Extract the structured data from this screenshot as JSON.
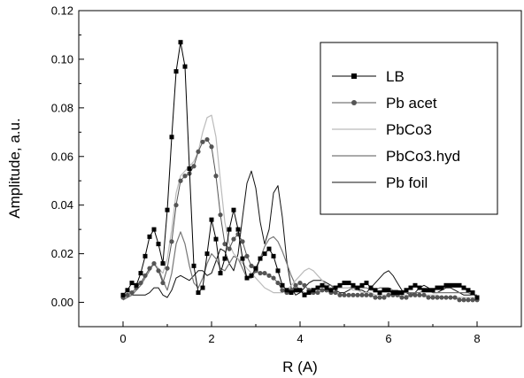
{
  "chart_data": {
    "type": "line",
    "title": "",
    "xlabel": "R (A)",
    "ylabel": "Amplitude, a.u.",
    "xlim": [
      -1,
      9
    ],
    "ylim": [
      -0.01,
      0.12
    ],
    "x_ticks": [
      0,
      2,
      4,
      6,
      8
    ],
    "x_tick_labels": [
      "0",
      "2",
      "4",
      "6",
      "8"
    ],
    "y_ticks": [
      0.0,
      0.02,
      0.04,
      0.06,
      0.08,
      0.1,
      0.12
    ],
    "y_tick_labels": [
      "0.00",
      "0.02",
      "0.04",
      "0.06",
      "0.08",
      "0.10",
      "0.12"
    ],
    "grid": false,
    "legend_position": "top-right",
    "series": [
      {
        "name": "LB",
        "color": "#000000",
        "marker": "square",
        "line_width": 1,
        "x": [
          0.0,
          0.1,
          0.2,
          0.3,
          0.4,
          0.5,
          0.6,
          0.7,
          0.8,
          0.9,
          1.0,
          1.1,
          1.2,
          1.3,
          1.4,
          1.5,
          1.6,
          1.7,
          1.8,
          1.9,
          2.0,
          2.1,
          2.2,
          2.3,
          2.4,
          2.5,
          2.6,
          2.7,
          2.8,
          2.9,
          3.0,
          3.1,
          3.2,
          3.3,
          3.4,
          3.5,
          3.6,
          3.7,
          3.8,
          3.9,
          4.0,
          4.1,
          4.2,
          4.3,
          4.4,
          4.5,
          4.6,
          4.7,
          4.8,
          4.9,
          5.0,
          5.1,
          5.2,
          5.3,
          5.4,
          5.5,
          5.6,
          5.7,
          5.8,
          5.9,
          6.0,
          6.1,
          6.2,
          6.3,
          6.4,
          6.5,
          6.6,
          6.7,
          6.8,
          6.9,
          7.0,
          7.1,
          7.2,
          7.3,
          7.4,
          7.5,
          7.6,
          7.7,
          7.8,
          7.9,
          8.0
        ],
        "y": [
          0.003,
          0.005,
          0.008,
          0.007,
          0.012,
          0.019,
          0.027,
          0.03,
          0.024,
          0.016,
          0.038,
          0.068,
          0.095,
          0.107,
          0.097,
          0.055,
          0.015,
          0.004,
          0.006,
          0.02,
          0.034,
          0.026,
          0.012,
          0.018,
          0.03,
          0.038,
          0.03,
          0.018,
          0.01,
          0.011,
          0.014,
          0.018,
          0.02,
          0.022,
          0.019,
          0.013,
          0.007,
          0.005,
          0.004,
          0.005,
          0.005,
          0.003,
          0.004,
          0.005,
          0.006,
          0.007,
          0.006,
          0.005,
          0.006,
          0.007,
          0.008,
          0.008,
          0.007,
          0.006,
          0.007,
          0.008,
          0.006,
          0.005,
          0.004,
          0.005,
          0.005,
          0.004,
          0.004,
          0.004,
          0.005,
          0.006,
          0.007,
          0.006,
          0.005,
          0.005,
          0.005,
          0.006,
          0.006,
          0.007,
          0.007,
          0.007,
          0.007,
          0.006,
          0.005,
          0.004,
          0.002
        ]
      },
      {
        "name": "Pb acet",
        "color": "#555555",
        "marker": "circle",
        "line_width": 1,
        "x": [
          0.0,
          0.1,
          0.2,
          0.3,
          0.4,
          0.5,
          0.6,
          0.7,
          0.8,
          0.9,
          1.0,
          1.1,
          1.2,
          1.3,
          1.4,
          1.5,
          1.6,
          1.7,
          1.8,
          1.9,
          2.0,
          2.1,
          2.2,
          2.3,
          2.4,
          2.5,
          2.6,
          2.7,
          2.8,
          2.9,
          3.0,
          3.1,
          3.2,
          3.3,
          3.4,
          3.5,
          3.6,
          3.7,
          3.8,
          3.9,
          4.0,
          4.1,
          4.2,
          4.3,
          4.4,
          4.5,
          4.6,
          4.7,
          4.8,
          4.9,
          5.0,
          5.1,
          5.2,
          5.3,
          5.4,
          5.5,
          5.6,
          5.7,
          5.8,
          5.9,
          6.0,
          6.1,
          6.2,
          6.3,
          6.4,
          6.5,
          6.6,
          6.7,
          6.8,
          6.9,
          7.0,
          7.1,
          7.2,
          7.3,
          7.4,
          7.5,
          7.6,
          7.7,
          7.8,
          7.9,
          8.0
        ],
        "y": [
          0.002,
          0.003,
          0.004,
          0.006,
          0.008,
          0.011,
          0.014,
          0.016,
          0.013,
          0.008,
          0.014,
          0.025,
          0.04,
          0.05,
          0.052,
          0.053,
          0.056,
          0.062,
          0.066,
          0.067,
          0.064,
          0.052,
          0.036,
          0.024,
          0.022,
          0.026,
          0.028,
          0.025,
          0.019,
          0.015,
          0.013,
          0.012,
          0.012,
          0.011,
          0.01,
          0.008,
          0.005,
          0.004,
          0.005,
          0.007,
          0.008,
          0.007,
          0.005,
          0.004,
          0.004,
          0.005,
          0.005,
          0.004,
          0.004,
          0.003,
          0.003,
          0.003,
          0.003,
          0.003,
          0.003,
          0.003,
          0.003,
          0.002,
          0.002,
          0.002,
          0.003,
          0.003,
          0.003,
          0.002,
          0.002,
          0.003,
          0.003,
          0.003,
          0.003,
          0.002,
          0.002,
          0.002,
          0.002,
          0.002,
          0.002,
          0.002,
          0.001,
          0.001,
          0.001,
          0.001,
          0.001
        ]
      },
      {
        "name": "PbCo3",
        "color": "#bbbbbb",
        "marker": "none",
        "line_width": 1.2,
        "x": [
          0.0,
          0.1,
          0.2,
          0.3,
          0.4,
          0.5,
          0.6,
          0.7,
          0.8,
          0.9,
          1.0,
          1.1,
          1.2,
          1.3,
          1.4,
          1.5,
          1.6,
          1.7,
          1.8,
          1.9,
          2.0,
          2.1,
          2.2,
          2.3,
          2.4,
          2.5,
          2.6,
          2.7,
          2.8,
          2.9,
          3.0,
          3.1,
          3.2,
          3.3,
          3.4,
          3.5,
          3.6,
          3.7,
          3.8,
          3.9,
          4.0,
          4.1,
          4.2,
          4.3,
          4.4,
          4.5,
          4.6,
          4.7,
          4.8,
          4.9,
          5.0,
          5.1,
          5.2,
          5.3,
          5.4,
          5.5,
          5.6,
          5.7,
          5.8,
          5.9,
          6.0,
          6.1,
          6.2,
          6.3,
          6.4,
          6.5,
          6.6,
          6.7,
          6.8,
          6.9,
          7.0,
          7.1,
          7.2,
          7.3,
          7.4,
          7.5,
          7.6,
          7.7,
          7.8,
          7.9,
          8.0
        ],
        "y": [
          0.002,
          0.003,
          0.004,
          0.006,
          0.008,
          0.011,
          0.014,
          0.016,
          0.014,
          0.012,
          0.018,
          0.03,
          0.045,
          0.052,
          0.054,
          0.056,
          0.058,
          0.062,
          0.07,
          0.076,
          0.077,
          0.068,
          0.05,
          0.033,
          0.024,
          0.02,
          0.018,
          0.016,
          0.014,
          0.012,
          0.01,
          0.008,
          0.006,
          0.005,
          0.004,
          0.004,
          0.004,
          0.005,
          0.007,
          0.009,
          0.011,
          0.013,
          0.014,
          0.013,
          0.011,
          0.009,
          0.007,
          0.006,
          0.006,
          0.006,
          0.006,
          0.006,
          0.005,
          0.005,
          0.004,
          0.004,
          0.004,
          0.003,
          0.003,
          0.003,
          0.003,
          0.003,
          0.003,
          0.003,
          0.003,
          0.003,
          0.003,
          0.003,
          0.003,
          0.003,
          0.003,
          0.003,
          0.002,
          0.002,
          0.002,
          0.002,
          0.002,
          0.002,
          0.002,
          0.002,
          0.002
        ]
      },
      {
        "name": "PbCo3.hyd",
        "color": "#777777",
        "marker": "none",
        "line_width": 1.2,
        "x": [
          0.0,
          0.1,
          0.2,
          0.3,
          0.4,
          0.5,
          0.6,
          0.7,
          0.8,
          0.9,
          1.0,
          1.1,
          1.2,
          1.3,
          1.4,
          1.5,
          1.6,
          1.7,
          1.8,
          1.9,
          2.0,
          2.1,
          2.2,
          2.3,
          2.4,
          2.5,
          2.6,
          2.7,
          2.8,
          2.9,
          3.0,
          3.1,
          3.2,
          3.3,
          3.4,
          3.5,
          3.6,
          3.7,
          3.8,
          3.9,
          4.0,
          4.1,
          4.2,
          4.3,
          4.4,
          4.5,
          4.6,
          4.7,
          4.8,
          4.9,
          5.0,
          5.1,
          5.2,
          5.3,
          5.4,
          5.5,
          5.6,
          5.7,
          5.8,
          5.9,
          6.0,
          6.1,
          6.2,
          6.3,
          6.4,
          6.5,
          6.6,
          6.7,
          6.8,
          6.9,
          7.0,
          7.1,
          7.2,
          7.3,
          7.4,
          7.5,
          7.6,
          7.7,
          7.8,
          7.9,
          8.0
        ],
        "y": [
          0.001,
          0.002,
          0.003,
          0.005,
          0.007,
          0.01,
          0.013,
          0.016,
          0.014,
          0.009,
          0.005,
          0.012,
          0.024,
          0.029,
          0.024,
          0.015,
          0.008,
          0.006,
          0.01,
          0.016,
          0.02,
          0.018,
          0.014,
          0.013,
          0.016,
          0.019,
          0.018,
          0.014,
          0.01,
          0.01,
          0.013,
          0.018,
          0.023,
          0.026,
          0.027,
          0.025,
          0.021,
          0.016,
          0.011,
          0.007,
          0.005,
          0.004,
          0.004,
          0.005,
          0.006,
          0.007,
          0.007,
          0.007,
          0.006,
          0.006,
          0.006,
          0.006,
          0.006,
          0.006,
          0.006,
          0.006,
          0.005,
          0.005,
          0.006,
          0.006,
          0.006,
          0.005,
          0.005,
          0.004,
          0.004,
          0.004,
          0.004,
          0.004,
          0.005,
          0.005,
          0.004,
          0.004,
          0.004,
          0.004,
          0.004,
          0.004,
          0.004,
          0.004,
          0.004,
          0.003,
          0.003
        ]
      },
      {
        "name": "Pb foil",
        "color": "#111111",
        "marker": "none",
        "line_width": 1,
        "x": [
          0.0,
          0.1,
          0.2,
          0.3,
          0.4,
          0.5,
          0.6,
          0.7,
          0.8,
          0.9,
          1.0,
          1.1,
          1.2,
          1.3,
          1.4,
          1.5,
          1.6,
          1.7,
          1.8,
          1.9,
          2.0,
          2.1,
          2.2,
          2.3,
          2.4,
          2.5,
          2.6,
          2.7,
          2.8,
          2.9,
          3.0,
          3.1,
          3.2,
          3.3,
          3.4,
          3.5,
          3.6,
          3.7,
          3.8,
          3.9,
          4.0,
          4.1,
          4.2,
          4.3,
          4.4,
          4.5,
          4.6,
          4.7,
          4.8,
          4.9,
          5.0,
          5.1,
          5.2,
          5.3,
          5.4,
          5.5,
          5.6,
          5.7,
          5.8,
          5.9,
          6.0,
          6.1,
          6.2,
          6.3,
          6.4,
          6.5,
          6.6,
          6.7,
          6.8,
          6.9,
          7.0,
          7.1,
          7.2,
          7.3,
          7.4,
          7.5,
          7.6,
          7.7,
          7.8,
          7.9,
          8.0
        ],
        "y": [
          0.001,
          0.002,
          0.003,
          0.003,
          0.003,
          0.003,
          0.004,
          0.006,
          0.006,
          0.003,
          0.002,
          0.005,
          0.01,
          0.011,
          0.01,
          0.009,
          0.011,
          0.013,
          0.013,
          0.011,
          0.012,
          0.017,
          0.022,
          0.021,
          0.016,
          0.013,
          0.02,
          0.035,
          0.049,
          0.054,
          0.047,
          0.033,
          0.024,
          0.03,
          0.045,
          0.048,
          0.035,
          0.017,
          0.006,
          0.003,
          0.004,
          0.006,
          0.008,
          0.009,
          0.009,
          0.009,
          0.008,
          0.007,
          0.005,
          0.004,
          0.004,
          0.005,
          0.006,
          0.005,
          0.005,
          0.004,
          0.006,
          0.008,
          0.01,
          0.012,
          0.013,
          0.011,
          0.008,
          0.005,
          0.004,
          0.003,
          0.004,
          0.006,
          0.007,
          0.006,
          0.004,
          0.004,
          0.005,
          0.006,
          0.006,
          0.005,
          0.004,
          0.003,
          0.003,
          0.003,
          0.003
        ]
      }
    ]
  }
}
